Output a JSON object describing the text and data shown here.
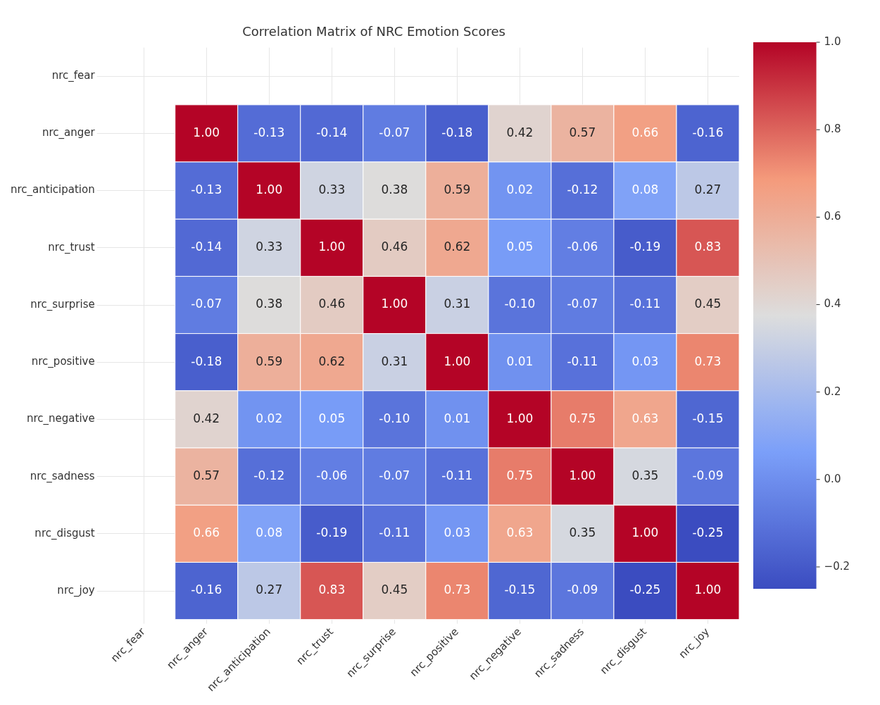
{
  "chart_data": {
    "type": "heatmap",
    "title": "Correlation Matrix of NRC Emotion Scores",
    "categories": [
      "nrc_fear",
      "nrc_anger",
      "nrc_anticipation",
      "nrc_trust",
      "nrc_surprise",
      "nrc_positive",
      "nrc_negative",
      "nrc_sadness",
      "nrc_disgust",
      "nrc_joy"
    ],
    "y_categories": [
      "nrc_fear",
      "nrc_anger",
      "nrc_anticipation",
      "nrc_trust",
      "nrc_surprise",
      "nrc_positive",
      "nrc_negative",
      "nrc_sadness",
      "nrc_disgust",
      "nrc_joy"
    ],
    "cells": [
      [
        null,
        null,
        null,
        null,
        null,
        null,
        null,
        null,
        null,
        null
      ],
      [
        null,
        1.0,
        -0.13,
        -0.14,
        -0.07,
        -0.18,
        0.42,
        0.57,
        0.66,
        -0.16
      ],
      [
        null,
        -0.13,
        1.0,
        0.33,
        0.38,
        0.59,
        0.02,
        -0.12,
        0.08,
        0.27
      ],
      [
        null,
        -0.14,
        0.33,
        1.0,
        0.46,
        0.62,
        0.05,
        -0.06,
        -0.19,
        0.83
      ],
      [
        null,
        -0.07,
        0.38,
        0.46,
        1.0,
        0.31,
        -0.1,
        -0.07,
        -0.11,
        0.45
      ],
      [
        null,
        -0.18,
        0.59,
        0.62,
        0.31,
        1.0,
        0.01,
        -0.11,
        0.03,
        0.73
      ],
      [
        null,
        0.42,
        0.02,
        0.05,
        -0.1,
        0.01,
        1.0,
        0.75,
        0.63,
        -0.15
      ],
      [
        null,
        0.57,
        -0.12,
        -0.06,
        -0.07,
        -0.11,
        0.75,
        1.0,
        0.35,
        -0.09
      ],
      [
        null,
        0.66,
        0.08,
        -0.19,
        -0.11,
        0.03,
        0.63,
        0.35,
        1.0,
        -0.25
      ],
      [
        null,
        -0.16,
        0.27,
        0.83,
        0.45,
        0.73,
        -0.15,
        -0.09,
        -0.25,
        1.0
      ]
    ],
    "cell_labels": [
      [
        null,
        null,
        null,
        null,
        null,
        null,
        null,
        null,
        null,
        null
      ],
      [
        null,
        "1.00",
        "-0.13",
        "-0.14",
        "-0.07",
        "-0.18",
        "0.42",
        "0.57",
        "0.66",
        "-0.16"
      ],
      [
        null,
        "-0.13",
        "1.00",
        "0.33",
        "0.38",
        "0.59",
        "0.02",
        "-0.12",
        "0.08",
        "0.27"
      ],
      [
        null,
        "-0.14",
        "0.33",
        "1.00",
        "0.46",
        "0.62",
        "0.05",
        "-0.06",
        "-0.19",
        "0.83"
      ],
      [
        null,
        "-0.07",
        "0.38",
        "0.46",
        "1.00",
        "0.31",
        "-0.10",
        "-0.07",
        "-0.11",
        "0.45"
      ],
      [
        null,
        "-0.18",
        "0.59",
        "0.62",
        "0.31",
        "1.00",
        "0.01",
        "-0.11",
        "0.03",
        "0.73"
      ],
      [
        null,
        "0.42",
        "0.02",
        "0.05",
        "-0.10",
        "0.01",
        "1.00",
        "0.75",
        "0.63",
        "-0.15"
      ],
      [
        null,
        "0.57",
        "-0.12",
        "-0.06",
        "-0.07",
        "-0.11",
        "0.75",
        "1.00",
        "0.35",
        "-0.09"
      ],
      [
        null,
        "0.66",
        "0.08",
        "-0.19",
        "-0.11",
        "0.03",
        "0.63",
        "0.35",
        "1.00",
        "-0.25"
      ],
      [
        null,
        "-0.16",
        "0.27",
        "0.83",
        "0.45",
        "0.73",
        "-0.15",
        "-0.09",
        "-0.25",
        "1.00"
      ]
    ],
    "clim": [
      -0.25,
      1.0
    ],
    "cticks": [
      {
        "value": -0.2,
        "label": "−0.2"
      },
      {
        "value": 0,
        "label": "0.0"
      },
      0.2,
      0.4,
      0.6,
      0.8,
      {
        "value": 1,
        "label": "1.0"
      }
    ],
    "grid": true
  }
}
